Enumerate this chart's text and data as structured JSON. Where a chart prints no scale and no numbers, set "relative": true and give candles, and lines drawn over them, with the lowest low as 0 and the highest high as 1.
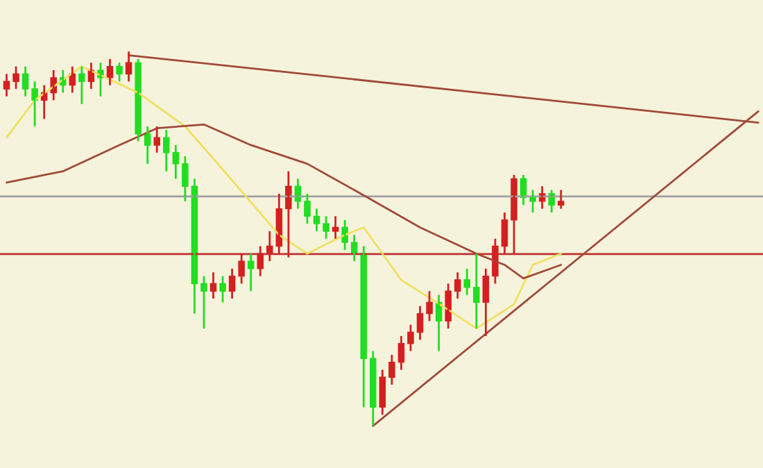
{
  "chart_data": {
    "type": "candlestick",
    "relative": true,
    "grid": false,
    "legend": false,
    "colors": [
      "#d42020",
      "#d42020",
      "#22dd22",
      "#22dd22",
      "#d42020",
      "#d42020",
      "#22dd22",
      "#d42020",
      "#22dd22",
      "#d42020",
      "#22dd22",
      "#d42020",
      "#22dd22",
      "#d42020",
      "#22dd22",
      "#22dd22",
      "#d42020",
      "#22dd22",
      "#22dd22",
      "#22dd22",
      "#22dd22",
      "#22dd22",
      "#d42020",
      "#22dd22",
      "#d42020",
      "#d42020",
      "#22dd22",
      "#d42020",
      "#d42020",
      "#d42020",
      "#d42020",
      "#22dd22",
      "#22dd22",
      "#22dd22",
      "#22dd22",
      "#d42020",
      "#22dd22",
      "#22dd22",
      "#22dd22",
      "#22dd22",
      "#d42020",
      "#d42020",
      "#d42020",
      "#d42020",
      "#d42020",
      "#d42020",
      "#22dd22",
      "#d42020",
      "#d42020",
      "#22dd22",
      "#22dd22",
      "#d42020",
      "#d42020",
      "#d42020",
      "#d42020",
      "#22dd22",
      "#22dd22",
      "#d42020",
      "#22dd22",
      "#d42020",
      null,
      null,
      null,
      null,
      null,
      null,
      null,
      null,
      null,
      null,
      null,
      null,
      null,
      null,
      null,
      null,
      null,
      null,
      null,
      null,
      null
    ],
    "categories": [
      null,
      null,
      null,
      null,
      null,
      null,
      null,
      null,
      null,
      null,
      null,
      null,
      null,
      null,
      null,
      null,
      null,
      null,
      null,
      null,
      null,
      null,
      null,
      null,
      null,
      null,
      null,
      null,
      null,
      null,
      null,
      null,
      null,
      null,
      null,
      null,
      null,
      null,
      null,
      null,
      null,
      null,
      null,
      null,
      null,
      null,
      null,
      null,
      null,
      null,
      null,
      null,
      null,
      null,
      null,
      null,
      null,
      null,
      null,
      null,
      null,
      null,
      null,
      null,
      null,
      null,
      null,
      null,
      null,
      null,
      null,
      null,
      null,
      null,
      null,
      null,
      null,
      null,
      null,
      null,
      null
    ],
    "ohlc": [
      [
        0.9,
        0.94,
        0.88,
        0.92
      ],
      [
        0.92,
        0.96,
        0.9,
        0.94
      ],
      [
        0.94,
        0.96,
        0.88,
        0.9
      ],
      [
        0.9,
        0.92,
        0.8,
        0.87
      ],
      [
        0.87,
        0.91,
        0.82,
        0.89
      ],
      [
        0.89,
        0.95,
        0.87,
        0.93
      ],
      [
        0.93,
        0.95,
        0.89,
        0.91
      ],
      [
        0.91,
        0.96,
        0.89,
        0.94
      ],
      [
        0.94,
        0.96,
        0.86,
        0.92
      ],
      [
        0.92,
        0.97,
        0.9,
        0.95
      ],
      [
        0.95,
        0.97,
        0.88,
        0.93
      ],
      [
        0.93,
        0.98,
        0.91,
        0.96
      ],
      [
        0.96,
        0.97,
        0.92,
        0.94
      ],
      [
        0.94,
        1.0,
        0.92,
        0.97
      ],
      [
        0.97,
        0.98,
        0.76,
        0.78
      ],
      [
        0.78,
        0.8,
        0.7,
        0.75
      ],
      [
        0.75,
        0.8,
        0.73,
        0.77
      ],
      [
        0.77,
        0.79,
        0.68,
        0.73
      ],
      [
        0.73,
        0.75,
        0.66,
        0.7
      ],
      [
        0.7,
        0.72,
        0.6,
        0.64
      ],
      [
        0.64,
        0.66,
        0.3,
        0.38
      ],
      [
        0.38,
        0.4,
        0.26,
        0.36
      ],
      [
        0.36,
        0.41,
        0.34,
        0.38
      ],
      [
        0.38,
        0.4,
        0.33,
        0.36
      ],
      [
        0.36,
        0.42,
        0.34,
        0.4
      ],
      [
        0.4,
        0.46,
        0.38,
        0.44
      ],
      [
        0.44,
        0.46,
        0.36,
        0.42
      ],
      [
        0.42,
        0.48,
        0.4,
        0.46
      ],
      [
        0.46,
        0.52,
        0.44,
        0.48
      ],
      [
        0.48,
        0.62,
        0.46,
        0.58
      ],
      [
        0.58,
        0.68,
        0.45,
        0.64
      ],
      [
        0.64,
        0.66,
        0.58,
        0.6
      ],
      [
        0.6,
        0.62,
        0.54,
        0.56
      ],
      [
        0.56,
        0.58,
        0.52,
        0.54
      ],
      [
        0.54,
        0.56,
        0.5,
        0.52
      ],
      [
        0.52,
        0.56,
        0.5,
        0.53
      ],
      [
        0.53,
        0.55,
        0.47,
        0.49
      ],
      [
        0.49,
        0.51,
        0.44,
        0.46
      ],
      [
        0.46,
        0.48,
        0.05,
        0.18
      ],
      [
        0.18,
        0.2,
        0.0,
        0.05
      ],
      [
        0.05,
        0.15,
        0.03,
        0.13
      ],
      [
        0.13,
        0.19,
        0.11,
        0.17
      ],
      [
        0.17,
        0.24,
        0.15,
        0.22
      ],
      [
        0.22,
        0.27,
        0.2,
        0.25
      ],
      [
        0.25,
        0.32,
        0.23,
        0.3
      ],
      [
        0.3,
        0.36,
        0.28,
        0.33
      ],
      [
        0.33,
        0.35,
        0.2,
        0.28
      ],
      [
        0.28,
        0.38,
        0.26,
        0.36
      ],
      [
        0.36,
        0.41,
        0.34,
        0.39
      ],
      [
        0.39,
        0.42,
        0.35,
        0.37
      ],
      [
        0.37,
        0.46,
        0.26,
        0.33
      ],
      [
        0.33,
        0.42,
        0.24,
        0.4
      ],
      [
        0.4,
        0.5,
        0.38,
        0.48
      ],
      [
        0.48,
        0.57,
        0.46,
        0.55
      ],
      [
        0.55,
        0.67,
        0.46,
        0.66
      ],
      [
        0.66,
        0.67,
        0.59,
        0.61
      ],
      [
        0.61,
        0.63,
        0.57,
        0.6
      ],
      [
        0.6,
        0.64,
        0.58,
        0.62
      ],
      [
        0.62,
        0.63,
        0.57,
        0.59
      ],
      [
        0.59,
        0.63,
        0.58,
        0.6
      ],
      null,
      null,
      null,
      null,
      null,
      null,
      null,
      null,
      null,
      null,
      null,
      null,
      null,
      null,
      null,
      null,
      null,
      null,
      null,
      null,
      null
    ],
    "series": [
      {
        "type": "line",
        "color": "#f0e060",
        "values": [
          0.77,
          null,
          null,
          0.87,
          null,
          null,
          null,
          null,
          0.96,
          null,
          null,
          null,
          null,
          null,
          0.89,
          null,
          null,
          null,
          null,
          0.8,
          null,
          null,
          null,
          0.685,
          null,
          null,
          null,
          null,
          null,
          0.51,
          null,
          null,
          0.46,
          null,
          null,
          null,
          0.51,
          null,
          0.53,
          null,
          null,
          null,
          0.39,
          null,
          null,
          null,
          null,
          0.31,
          null,
          null,
          0.26,
          null,
          null,
          null,
          0.325,
          null,
          0.43,
          null,
          null,
          0.46,
          null,
          null,
          null,
          null,
          null,
          null,
          null,
          null,
          null,
          null,
          null,
          null,
          null,
          null,
          null,
          null,
          null,
          null,
          null,
          null,
          null
        ]
      },
      {
        "type": "line",
        "color": "#a04a3a",
        "values": [
          0.65,
          null,
          null,
          null,
          null,
          null,
          0.68,
          null,
          null,
          null,
          null,
          null,
          0.75,
          null,
          null,
          null,
          0.795,
          null,
          null,
          null,
          null,
          0.805,
          null,
          null,
          null,
          null,
          0.75,
          null,
          null,
          null,
          null,
          null,
          0.7,
          null,
          null,
          null,
          null,
          null,
          0.616,
          null,
          null,
          null,
          null,
          null,
          0.53,
          null,
          null,
          null,
          null,
          null,
          0.46,
          null,
          null,
          0.43,
          null,
          0.394,
          null,
          null,
          null,
          0.43,
          null,
          null,
          null,
          null,
          null,
          null,
          null,
          null,
          null,
          null,
          null,
          null,
          null,
          null,
          null,
          null,
          null,
          null,
          null,
          null,
          null
        ]
      },
      {
        "type": "line",
        "color": "#a04a3a",
        "values": [
          null,
          null,
          null,
          null,
          null,
          null,
          null,
          null,
          null,
          null,
          null,
          null,
          null,
          0.99,
          null,
          null,
          null,
          null,
          null,
          null,
          null,
          null,
          null,
          null,
          null,
          null,
          null,
          null,
          null,
          null,
          null,
          null,
          null,
          null,
          null,
          null,
          null,
          null,
          null,
          null,
          null,
          null,
          null,
          null,
          null,
          null,
          null,
          null,
          null,
          null,
          null,
          null,
          null,
          null,
          null,
          null,
          null,
          null,
          null,
          null,
          null,
          null,
          null,
          null,
          null,
          null,
          null,
          null,
          null,
          null,
          null,
          null,
          null,
          null,
          null,
          null,
          null,
          null,
          null,
          null,
          0.81
        ]
      },
      {
        "type": "line",
        "color": "#a04a3a",
        "values": [
          null,
          null,
          null,
          null,
          null,
          null,
          null,
          null,
          null,
          null,
          null,
          null,
          null,
          null,
          null,
          null,
          null,
          null,
          null,
          null,
          null,
          null,
          null,
          null,
          null,
          null,
          null,
          null,
          null,
          null,
          null,
          null,
          null,
          null,
          null,
          null,
          null,
          null,
          null,
          0.0,
          null,
          null,
          null,
          null,
          null,
          null,
          null,
          null,
          null,
          null,
          null,
          null,
          null,
          null,
          null,
          null,
          null,
          null,
          null,
          null,
          null,
          null,
          null,
          null,
          null,
          null,
          null,
          null,
          null,
          null,
          null,
          null,
          null,
          null,
          null,
          null,
          null,
          null,
          null,
          null,
          0.84
        ]
      }
    ],
    "ref_lines": [
      {
        "axis": "y",
        "value": 0.613,
        "color": "#a0a0a0"
      },
      {
        "axis": "y",
        "value": 0.459,
        "color": "#c03030"
      }
    ]
  }
}
